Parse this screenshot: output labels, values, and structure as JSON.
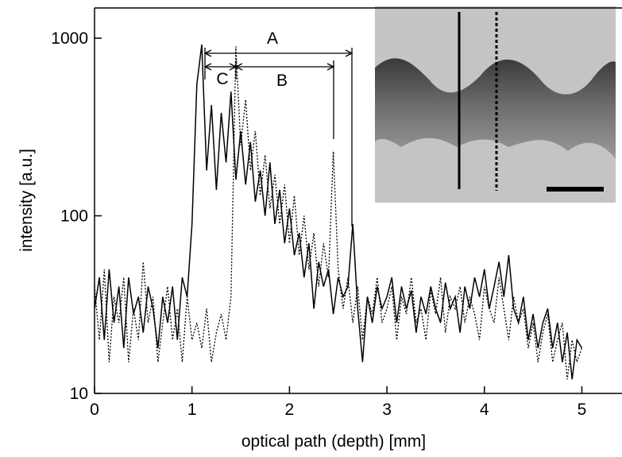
{
  "chart_data": {
    "type": "line",
    "xlabel": "optical path (depth) [mm]",
    "ylabel": "intensity [a.u.]",
    "x": [
      0,
      0.05,
      0.1,
      0.15,
      0.2,
      0.25,
      0.3,
      0.35,
      0.4,
      0.45,
      0.5,
      0.55,
      0.6,
      0.65,
      0.7,
      0.75,
      0.8,
      0.85,
      0.9,
      0.95,
      1.0,
      1.05,
      1.1,
      1.15,
      1.2,
      1.25,
      1.3,
      1.35,
      1.4,
      1.45,
      1.5,
      1.55,
      1.6,
      1.65,
      1.7,
      1.75,
      1.8,
      1.85,
      1.9,
      1.95,
      2.0,
      2.05,
      2.1,
      2.15,
      2.2,
      2.25,
      2.3,
      2.35,
      2.4,
      2.45,
      2.5,
      2.55,
      2.6,
      2.65,
      2.7,
      2.75,
      2.8,
      2.85,
      2.9,
      2.95,
      3.0,
      3.05,
      3.1,
      3.15,
      3.2,
      3.25,
      3.3,
      3.35,
      3.4,
      3.45,
      3.5,
      3.55,
      3.6,
      3.65,
      3.7,
      3.75,
      3.8,
      3.85,
      3.9,
      3.95,
      4.0,
      4.05,
      4.1,
      4.15,
      4.2,
      4.25,
      4.3,
      4.35,
      4.4,
      4.45,
      4.5,
      4.55,
      4.6,
      4.65,
      4.7,
      4.75,
      4.8,
      4.85,
      4.9,
      4.95,
      5.0
    ],
    "series": [
      {
        "color": "#000000",
        "style": "solid",
        "values": [
          30,
          45,
          20,
          50,
          25,
          40,
          18,
          45,
          28,
          35,
          22,
          40,
          30,
          18,
          35,
          25,
          40,
          20,
          45,
          35,
          90,
          550,
          920,
          180,
          420,
          140,
          380,
          200,
          500,
          160,
          300,
          150,
          260,
          120,
          180,
          100,
          200,
          90,
          140,
          70,
          110,
          60,
          80,
          45,
          70,
          30,
          55,
          40,
          50,
          28,
          45,
          35,
          40,
          90,
          30,
          15,
          35,
          25,
          40,
          30,
          35,
          45,
          25,
          40,
          30,
          38,
          22,
          35,
          28,
          40,
          30,
          25,
          42,
          30,
          35,
          22,
          40,
          30,
          45,
          35,
          50,
          30,
          40,
          55,
          35,
          60,
          30,
          25,
          35,
          20,
          28,
          18,
          25,
          30,
          18,
          25,
          15,
          22,
          12,
          20,
          18
        ]
      },
      {
        "color": "#000000",
        "style": "dotted",
        "values": [
          40,
          20,
          50,
          15,
          35,
          25,
          45,
          15,
          30,
          20,
          55,
          25,
          35,
          15,
          25,
          40,
          20,
          30,
          15,
          35,
          20,
          25,
          18,
          30,
          15,
          22,
          28,
          20,
          35,
          900,
          250,
          450,
          180,
          300,
          130,
          220,
          110,
          170,
          90,
          150,
          70,
          130,
          60,
          100,
          50,
          80,
          40,
          70,
          45,
          230,
          50,
          30,
          45,
          25,
          40,
          20,
          35,
          28,
          45,
          25,
          30,
          40,
          20,
          35,
          28,
          45,
          25,
          30,
          20,
          38,
          28,
          45,
          22,
          35,
          30,
          40,
          25,
          35,
          28,
          20,
          40,
          30,
          25,
          45,
          30,
          20,
          35,
          25,
          30,
          18,
          25,
          15,
          22,
          28,
          15,
          20,
          25,
          12,
          20,
          15,
          18
        ]
      }
    ],
    "xlim": [
      0,
      5.42
    ],
    "xticks": [
      0,
      1,
      2,
      3,
      4,
      5
    ],
    "ylim": [
      10,
      1480
    ],
    "yticks": [
      10,
      100,
      1000
    ],
    "log_y": true,
    "annotations": [
      "A",
      "B",
      "C"
    ]
  }
}
